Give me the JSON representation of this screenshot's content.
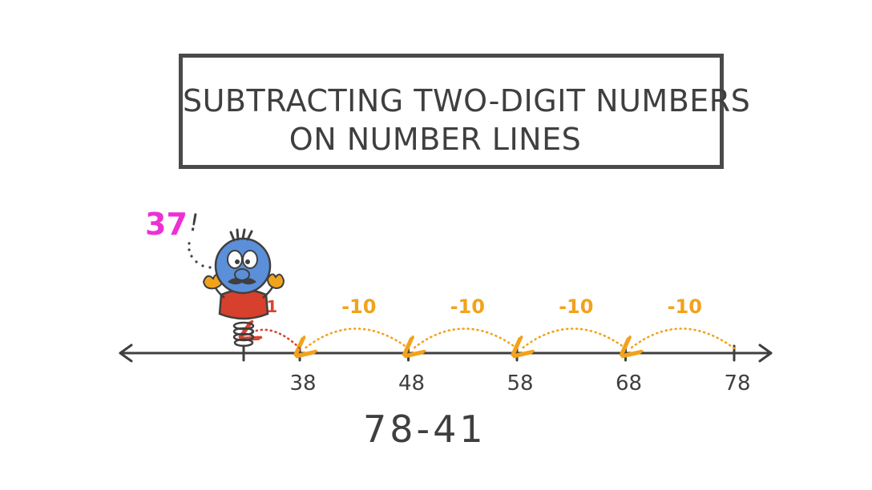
{
  "title": {
    "line1": "SUBTRACTING TWO-DIGIT NUMBERS",
    "line2": "ON NUMBER LINES"
  },
  "expression": "78-41",
  "answer_callout": {
    "value": "37",
    "mark": "!"
  },
  "number_line": {
    "ticks": [
      {
        "value": 37,
        "label": ""
      },
      {
        "value": 38,
        "label": "38"
      },
      {
        "value": 48,
        "label": "48"
      },
      {
        "value": 58,
        "label": "58"
      },
      {
        "value": 68,
        "label": "68"
      },
      {
        "value": 78,
        "label": "78"
      }
    ],
    "jumps": [
      {
        "from": 78,
        "to": 68,
        "label": "-10",
        "kind": "tens"
      },
      {
        "from": 68,
        "to": 58,
        "label": "-10",
        "kind": "tens"
      },
      {
        "from": 58,
        "to": 48,
        "label": "-10",
        "kind": "tens"
      },
      {
        "from": 48,
        "to": 38,
        "label": "-10",
        "kind": "tens"
      },
      {
        "from": 38,
        "to": 37,
        "label": "-1",
        "kind": "ones"
      }
    ]
  },
  "character": {
    "name": "spring-character"
  },
  "colors": {
    "ink": "#3f3f3f",
    "tens_jump": "#f2a21b",
    "ones_jump": "#d9452f",
    "answer": "#ee2fd6",
    "character_face": "#5b8fd9",
    "character_shirt": "#d7402c",
    "character_hands": "#f0a31c"
  }
}
